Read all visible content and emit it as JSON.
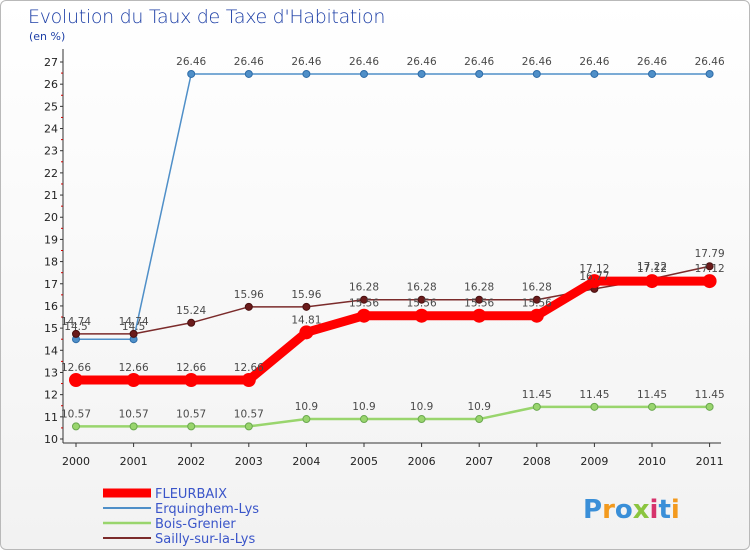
{
  "header": {
    "title": "Evolution du Taux de Taxe d'Habitation",
    "subtitle": "(en %)"
  },
  "logo": {
    "text": "Proxiti"
  },
  "chart_data": {
    "type": "line",
    "title": "Evolution du Taux de Taxe d'Habitation",
    "ylabel": "(en %)",
    "xlabel": "",
    "ylim": [
      10,
      27
    ],
    "x": [
      "2000",
      "2001",
      "2002",
      "2003",
      "2004",
      "2005",
      "2006",
      "2007",
      "2008",
      "2009",
      "2010",
      "2011"
    ],
    "y_ticks": [
      10,
      11,
      12,
      13,
      14,
      15,
      16,
      17,
      18,
      19,
      20,
      21,
      22,
      23,
      24,
      25,
      26,
      27
    ],
    "legend_position": "bottom-left",
    "series": [
      {
        "name": "FLEURBAIX",
        "color": "#ff0000",
        "values": [
          12.66,
          12.66,
          12.66,
          12.66,
          14.81,
          15.56,
          15.56,
          15.56,
          15.56,
          17.12,
          17.12,
          17.12
        ]
      },
      {
        "name": "Erquinghem-Lys",
        "color": "#4f8fc8",
        "values": [
          14.5,
          14.5,
          26.46,
          26.46,
          26.46,
          26.46,
          26.46,
          26.46,
          26.46,
          26.46,
          26.46,
          26.46
        ]
      },
      {
        "name": "Bois-Grenier",
        "color": "#99d56d",
        "values": [
          10.57,
          10.57,
          10.57,
          10.57,
          10.9,
          10.9,
          10.9,
          10.9,
          11.45,
          11.45,
          11.45,
          11.45
        ]
      },
      {
        "name": "Sailly-sur-la-Lys",
        "color": "#7b2b2b",
        "values": [
          14.74,
          14.74,
          15.24,
          15.96,
          15.96,
          16.28,
          16.28,
          16.28,
          16.28,
          16.77,
          17.22,
          17.79
        ]
      }
    ]
  }
}
